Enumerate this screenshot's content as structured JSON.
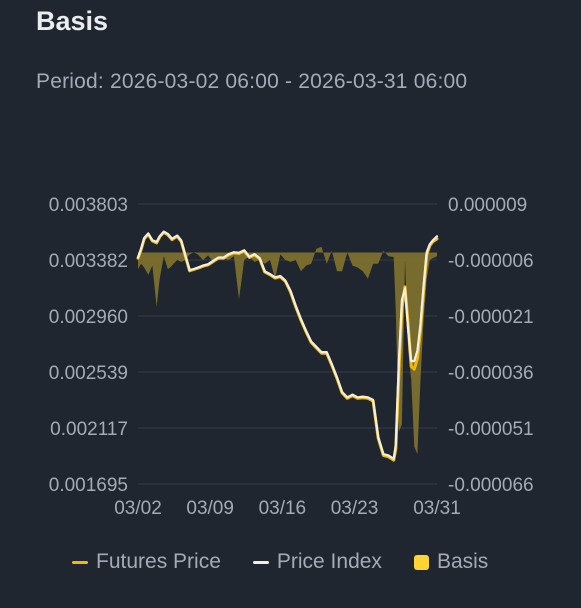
{
  "title": "Basis",
  "period": "Period: 2026-03-02 06:00 - 2026-03-31 06:00",
  "colors": {
    "background": "#1f2630",
    "futures": "#f0b90b",
    "index": "#f3efe0",
    "basis_fill": "#7d6f2e",
    "basis_legend": "#fcd535",
    "grid": "#343c47",
    "text": "#a4abb6"
  },
  "chart_data": {
    "type": "line",
    "title": "Basis",
    "x_tick_labels": [
      "03/02",
      "03/09",
      "03/16",
      "03/23",
      "03/31"
    ],
    "x_range": [
      0,
      29
    ],
    "x_ticks": [
      0,
      7,
      14,
      21,
      29
    ],
    "left_axis": {
      "ticks": [
        "0.003803",
        "0.003382",
        "0.002960",
        "0.002539",
        "0.002117",
        "0.001695"
      ],
      "range": [
        0.001695,
        0.003803
      ]
    },
    "right_axis": {
      "ticks": [
        "0.000009",
        "-0.000006",
        "-0.000021",
        "-0.000036",
        "-0.000051",
        "-0.000066"
      ],
      "range": [
        -6.6e-05,
        9e-06
      ]
    },
    "grid": true,
    "legend_position": "bottom",
    "series": [
      {
        "name": "Futures Price",
        "axis": "left",
        "x": [
          0,
          0.3,
          0.6,
          1.0,
          1.4,
          1.8,
          2.1,
          2.5,
          2.9,
          3.3,
          3.8,
          4.2,
          4.6,
          5.0,
          5.4,
          5.8,
          6.3,
          6.8,
          7.3,
          7.8,
          8.3,
          8.8,
          9.3,
          9.8,
          10.3,
          10.8,
          11.3,
          11.8,
          12.3,
          12.8,
          13.3,
          13.8,
          14.3,
          14.8,
          15.3,
          15.8,
          16.3,
          16.8,
          17.3,
          17.8,
          18.3,
          18.8,
          19.3,
          19.8,
          20.3,
          20.8,
          21.3,
          21.8,
          22.3,
          22.8,
          23.3,
          23.8,
          24.3,
          24.8,
          25.0,
          25.3,
          25.6,
          25.9,
          26.2,
          26.5,
          26.8,
          27.1,
          27.4,
          27.7,
          28.0,
          28.3,
          28.6,
          29.0
        ],
        "y": [
          0.003395,
          0.00346,
          0.00354,
          0.003575,
          0.003525,
          0.00351,
          0.003555,
          0.00359,
          0.00357,
          0.003535,
          0.00356,
          0.00352,
          0.00341,
          0.0033,
          0.00331,
          0.00332,
          0.003335,
          0.003345,
          0.00337,
          0.003395,
          0.003395,
          0.00342,
          0.003435,
          0.00343,
          0.00345,
          0.0034,
          0.00342,
          0.00339,
          0.00329,
          0.00327,
          0.003245,
          0.003255,
          0.00322,
          0.00314,
          0.00303,
          0.00293,
          0.00284,
          0.00276,
          0.00272,
          0.00268,
          0.00268,
          0.00259,
          0.00249,
          0.00238,
          0.00234,
          0.00236,
          0.00234,
          0.002345,
          0.00234,
          0.00232,
          0.00204,
          0.00191,
          0.0019,
          0.001875,
          0.00196,
          0.00254,
          0.00302,
          0.00318,
          0.0029,
          0.00258,
          0.00256,
          0.00264,
          0.00286,
          0.00315,
          0.00342,
          0.00349,
          0.00352,
          0.00354
        ]
      },
      {
        "name": "Price Index",
        "axis": "left",
        "x": [
          0,
          0.3,
          0.6,
          1.0,
          1.4,
          1.8,
          2.1,
          2.5,
          2.9,
          3.3,
          3.8,
          4.2,
          4.6,
          5.0,
          5.4,
          5.8,
          6.3,
          6.8,
          7.3,
          7.8,
          8.3,
          8.8,
          9.3,
          9.8,
          10.3,
          10.8,
          11.3,
          11.8,
          12.3,
          12.8,
          13.3,
          13.8,
          14.3,
          14.8,
          15.3,
          15.8,
          16.3,
          16.8,
          17.3,
          17.8,
          18.3,
          18.8,
          19.3,
          19.8,
          20.3,
          20.8,
          21.3,
          21.8,
          22.3,
          22.8,
          23.3,
          23.8,
          24.3,
          24.8,
          25.0,
          25.3,
          25.6,
          25.9,
          26.2,
          26.5,
          26.8,
          27.1,
          27.4,
          27.7,
          28.0,
          28.3,
          28.6,
          29.0
        ],
        "y": [
          0.0034,
          0.003465,
          0.003548,
          0.003582,
          0.00353,
          0.003518,
          0.00356,
          0.003595,
          0.003578,
          0.003542,
          0.003566,
          0.003528,
          0.003415,
          0.003305,
          0.003314,
          0.003324,
          0.00334,
          0.00335,
          0.003376,
          0.0034,
          0.0034,
          0.003426,
          0.00344,
          0.003436,
          0.003455,
          0.003406,
          0.003426,
          0.003396,
          0.003296,
          0.003276,
          0.003251,
          0.003261,
          0.003226,
          0.003148,
          0.003038,
          0.002938,
          0.002848,
          0.002768,
          0.002728,
          0.002688,
          0.002688,
          0.002598,
          0.002498,
          0.002388,
          0.002348,
          0.002368,
          0.002348,
          0.002353,
          0.002348,
          0.002328,
          0.00205,
          0.00192,
          0.00191,
          0.001885,
          0.00199,
          0.00262,
          0.00308,
          0.00317,
          0.00286,
          0.00262,
          0.00262,
          0.0027,
          0.0029,
          0.00319,
          0.00344,
          0.0035,
          0.00353,
          0.00356
        ]
      },
      {
        "name": "Basis",
        "axis": "right",
        "type": "area",
        "x": [
          0,
          0.3,
          0.6,
          1.0,
          1.4,
          1.8,
          2.1,
          2.5,
          2.9,
          3.3,
          3.8,
          4.2,
          4.6,
          5.0,
          5.4,
          5.8,
          6.3,
          6.8,
          7.3,
          7.8,
          8.3,
          8.8,
          9.3,
          9.8,
          10.3,
          10.8,
          11.3,
          11.8,
          12.3,
          12.8,
          13.3,
          13.8,
          14.3,
          14.8,
          15.3,
          15.8,
          16.3,
          16.8,
          17.3,
          17.8,
          18.3,
          18.8,
          19.3,
          19.8,
          20.3,
          20.8,
          21.3,
          21.8,
          22.3,
          22.8,
          23.3,
          23.8,
          24.3,
          24.8,
          25.0,
          25.3,
          25.6,
          25.9,
          26.2,
          26.5,
          26.8,
          27.1,
          27.4,
          27.7,
          28.0,
          28.3,
          28.6,
          29.0
        ],
        "y": [
          -8.5e-06,
          -7e-06,
          -8e-06,
          -1e-05,
          -7.5e-06,
          -1.85e-05,
          -1.1e-05,
          -5e-06,
          -8.5e-06,
          -7.5e-06,
          -6e-06,
          -6.5e-06,
          -6e-06,
          -4.5e-06,
          -4e-06,
          -4.5e-06,
          -6e-06,
          -4.8e-06,
          -6.5e-06,
          -6e-06,
          -5.5e-06,
          -6e-06,
          -5e-06,
          -1.65e-05,
          -6e-06,
          -5e-06,
          -6.5e-06,
          -6e-06,
          -7e-06,
          -6e-06,
          -1.1e-05,
          -4.5e-06,
          -6e-06,
          -6.5e-06,
          -6e-06,
          -9e-06,
          -7.5e-06,
          -7e-06,
          -3e-06,
          -2.5e-06,
          -7e-06,
          -3.5e-06,
          -9e-06,
          -9e-06,
          -4e-06,
          -7.5e-06,
          -8e-06,
          -9e-06,
          -1.1e-05,
          -7e-06,
          -7e-06,
          -3.5e-06,
          -5e-06,
          -5.2e-06,
          -2e-05,
          -5.2e-05,
          -5e-05,
          -6e-06,
          -3e-05,
          -3.8e-05,
          -5.6e-05,
          -5.8e-05,
          -3.8e-05,
          -2.2e-05,
          -1.1e-05,
          -6e-06,
          -5.5e-06,
          -5e-06
        ]
      }
    ]
  },
  "legend": {
    "futures_label": "Futures Price",
    "index_label": "Price Index",
    "basis_label": "Basis"
  }
}
